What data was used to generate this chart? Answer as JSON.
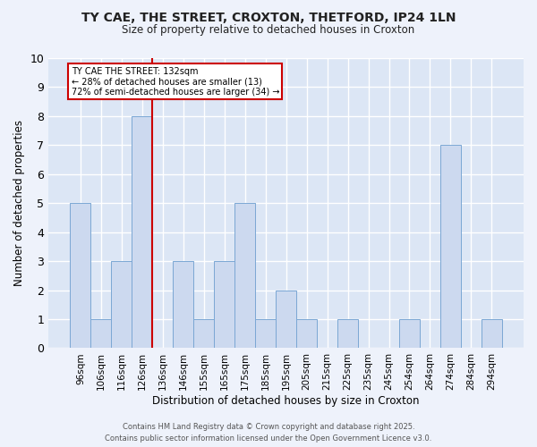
{
  "title": "TY CAE, THE STREET, CROXTON, THETFORD, IP24 1LN",
  "subtitle": "Size of property relative to detached houses in Croxton",
  "xlabel": "Distribution of detached houses by size in Croxton",
  "ylabel": "Number of detached properties",
  "categories": [
    "96sqm",
    "106sqm",
    "116sqm",
    "126sqm",
    "136sqm",
    "146sqm",
    "155sqm",
    "165sqm",
    "175sqm",
    "185sqm",
    "195sqm",
    "205sqm",
    "215sqm",
    "225sqm",
    "235sqm",
    "245sqm",
    "254sqm",
    "264sqm",
    "274sqm",
    "284sqm",
    "294sqm"
  ],
  "values": [
    5,
    1,
    3,
    8,
    0,
    3,
    1,
    3,
    5,
    1,
    2,
    1,
    0,
    1,
    0,
    0,
    1,
    0,
    7,
    0,
    1
  ],
  "bar_color": "#ccd9ef",
  "bar_edge_color": "#7ba7d4",
  "reference_line_label": "TY CAE THE STREET: 132sqm",
  "annotation_line1": "← 28% of detached houses are smaller (13)",
  "annotation_line2": "72% of semi-detached houses are larger (34) →",
  "annotation_box_color": "#ffffff",
  "annotation_box_edge": "#cc0000",
  "ref_line_color": "#cc0000",
  "ylim": [
    0,
    10
  ],
  "yticks": [
    0,
    1,
    2,
    3,
    4,
    5,
    6,
    7,
    8,
    9,
    10
  ],
  "background_color": "#dce6f5",
  "plot_bg_color": "#dce6f5",
  "fig_bg_color": "#eef2fb",
  "grid_color": "#ffffff",
  "footer": "Contains HM Land Registry data © Crown copyright and database right 2025.\nContains public sector information licensed under the Open Government Licence v3.0."
}
